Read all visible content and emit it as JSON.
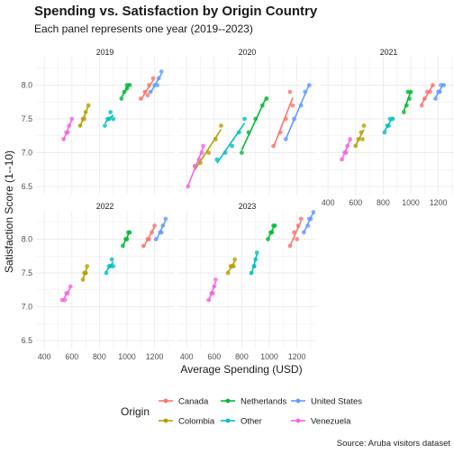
{
  "header": {
    "title": "Spending vs. Satisfaction by Origin Country",
    "subtitle": "Each panel represents one year (2019--2023)"
  },
  "caption": "Source: Aruba visitors dataset",
  "colors": {
    "Canada": "#F8766D",
    "Colombia": "#B79F00",
    "Netherlands": "#00BA38",
    "Other": "#00BFC4",
    "United States": "#619CFF",
    "Venezuela": "#F564E3"
  },
  "chart_data": {
    "type": "scatter",
    "title": "Spending vs. Satisfaction by Origin Country",
    "subtitle": "Each panel represents one year (2019--2023)",
    "xlabel": "Average Spending (USD)",
    "ylabel": "Satisfaction Score (1--10)",
    "xlim": [
      340,
      1340
    ],
    "ylim": [
      6.38,
      8.42
    ],
    "x_ticks": [
      400,
      600,
      800,
      1000,
      1200
    ],
    "y_ticks": [
      6.5,
      7.0,
      7.5,
      8.0
    ],
    "grid": true,
    "smooth": "linear fit per group",
    "legend": {
      "title": "Origin",
      "position": "bottom",
      "items": [
        "Canada",
        "Colombia",
        "Netherlands",
        "Other",
        "United States",
        "Venezuela"
      ]
    },
    "facets": [
      {
        "label": "2019",
        "series": [
          {
            "name": "Canada",
            "x": [
              1100,
              1130,
              1160,
              1190,
              1150
            ],
            "y": [
              7.8,
              7.9,
              8.0,
              8.1,
              7.85
            ]
          },
          {
            "name": "Colombia",
            "x": [
              660,
              680,
              700,
              720,
              690
            ],
            "y": [
              7.4,
              7.5,
              7.6,
              7.7,
              7.5
            ]
          },
          {
            "name": "Netherlands",
            "x": [
              960,
              980,
              1000,
              1020,
              1000
            ],
            "y": [
              7.8,
              7.9,
              8.0,
              8.0,
              7.95
            ]
          },
          {
            "name": "Other",
            "x": [
              840,
              860,
              880,
              900,
              870
            ],
            "y": [
              7.4,
              7.5,
              7.6,
              7.5,
              7.5
            ]
          },
          {
            "name": "United States",
            "x": [
              1170,
              1200,
              1230,
              1250,
              1220
            ],
            "y": [
              7.9,
              8.0,
              8.1,
              8.2,
              8.0
            ]
          },
          {
            "name": "Venezuela",
            "x": [
              540,
              560,
              580,
              600,
              570
            ],
            "y": [
              7.2,
              7.3,
              7.4,
              7.5,
              7.3
            ]
          }
        ]
      },
      {
        "label": "2020",
        "series": [
          {
            "name": "Canada",
            "x": [
              1030,
              1080,
              1120,
              1170,
              1150
            ],
            "y": [
              7.1,
              7.3,
              7.5,
              7.7,
              7.9
            ]
          },
          {
            "name": "Colombia",
            "x": [
              460,
              500,
              560,
              610,
              650
            ],
            "y": [
              6.8,
              6.85,
              7.0,
              7.2,
              7.4
            ]
          },
          {
            "name": "Netherlands",
            "x": [
              800,
              850,
              900,
              950,
              980
            ],
            "y": [
              7.0,
              7.3,
              7.5,
              7.7,
              7.8
            ]
          },
          {
            "name": "Other",
            "x": [
              620,
              680,
              730,
              780,
              820
            ],
            "y": [
              6.9,
              7.0,
              7.1,
              7.3,
              7.5
            ]
          },
          {
            "name": "United States",
            "x": [
              1120,
              1180,
              1230,
              1260,
              1290
            ],
            "y": [
              7.2,
              7.5,
              7.7,
              7.9,
              8.0
            ]
          },
          {
            "name": "Venezuela",
            "x": [
              410,
              460,
              490,
              510,
              520
            ],
            "y": [
              6.5,
              6.8,
              6.9,
              7.0,
              7.1
            ]
          }
        ]
      },
      {
        "label": "2021",
        "series": [
          {
            "name": "Canada",
            "x": [
              1080,
              1100,
              1120,
              1140,
              1160
            ],
            "y": [
              7.7,
              7.8,
              7.9,
              7.9,
              8.0
            ]
          },
          {
            "name": "Colombia",
            "x": [
              600,
              620,
              640,
              660,
              650
            ],
            "y": [
              7.1,
              7.2,
              7.3,
              7.4,
              7.2
            ]
          },
          {
            "name": "Netherlands",
            "x": [
              950,
              970,
              990,
              1000,
              980
            ],
            "y": [
              7.6,
              7.7,
              7.8,
              7.9,
              7.9
            ]
          },
          {
            "name": "Other",
            "x": [
              810,
              830,
              850,
              870,
              840
            ],
            "y": [
              7.3,
              7.4,
              7.5,
              7.5,
              7.4
            ]
          },
          {
            "name": "United States",
            "x": [
              1180,
              1200,
              1220,
              1240,
              1210
            ],
            "y": [
              7.8,
              7.9,
              8.0,
              8.0,
              7.9
            ]
          },
          {
            "name": "Venezuela",
            "x": [
              500,
              520,
              540,
              560,
              530
            ],
            "y": [
              6.9,
              7.0,
              7.1,
              7.2,
              7.0
            ]
          }
        ]
      },
      {
        "label": "2022",
        "series": [
          {
            "name": "Canada",
            "x": [
              1120,
              1150,
              1180,
              1200,
              1160
            ],
            "y": [
              7.9,
              8.0,
              8.1,
              8.2,
              8.0
            ]
          },
          {
            "name": "Colombia",
            "x": [
              680,
              690,
              700,
              710,
              700
            ],
            "y": [
              7.4,
              7.5,
              7.5,
              7.6,
              7.5
            ]
          },
          {
            "name": "Netherlands",
            "x": [
              970,
              990,
              1010,
              1020,
              1000
            ],
            "y": [
              7.9,
              8.0,
              8.1,
              8.1,
              8.0
            ]
          },
          {
            "name": "Other",
            "x": [
              850,
              870,
              890,
              900,
              880
            ],
            "y": [
              7.5,
              7.6,
              7.7,
              7.6,
              7.6
            ]
          },
          {
            "name": "United States",
            "x": [
              1210,
              1240,
              1260,
              1280,
              1250
            ],
            "y": [
              8.0,
              8.1,
              8.2,
              8.3,
              8.1
            ]
          },
          {
            "name": "Venezuela",
            "x": [
              530,
              550,
              570,
              590,
              560
            ],
            "y": [
              7.1,
              7.1,
              7.2,
              7.3,
              7.2
            ]
          }
        ]
      },
      {
        "label": "2023",
        "series": [
          {
            "name": "Canada",
            "x": [
              1150,
              1180,
              1210,
              1230,
              1200
            ],
            "y": [
              7.9,
              8.1,
              8.2,
              8.3,
              8.0
            ]
          },
          {
            "name": "Colombia",
            "x": [
              700,
              720,
              740,
              750,
              730
            ],
            "y": [
              7.5,
              7.6,
              7.6,
              7.7,
              7.6
            ]
          },
          {
            "name": "Netherlands",
            "x": [
              990,
              1010,
              1030,
              1040,
              1020
            ],
            "y": [
              8.0,
              8.1,
              8.2,
              8.2,
              8.1
            ]
          },
          {
            "name": "Other",
            "x": [
              870,
              890,
              900,
              910,
              890
            ],
            "y": [
              7.5,
              7.6,
              7.7,
              7.8,
              7.6
            ]
          },
          {
            "name": "United States",
            "x": [
              1250,
              1280,
              1300,
              1320,
              1290
            ],
            "y": [
              8.1,
              8.2,
              8.3,
              8.4,
              8.3
            ]
          },
          {
            "name": "Venezuela",
            "x": [
              560,
              580,
              600,
              610,
              590
            ],
            "y": [
              7.1,
              7.2,
              7.3,
              7.4,
              7.2
            ]
          }
        ]
      }
    ]
  }
}
